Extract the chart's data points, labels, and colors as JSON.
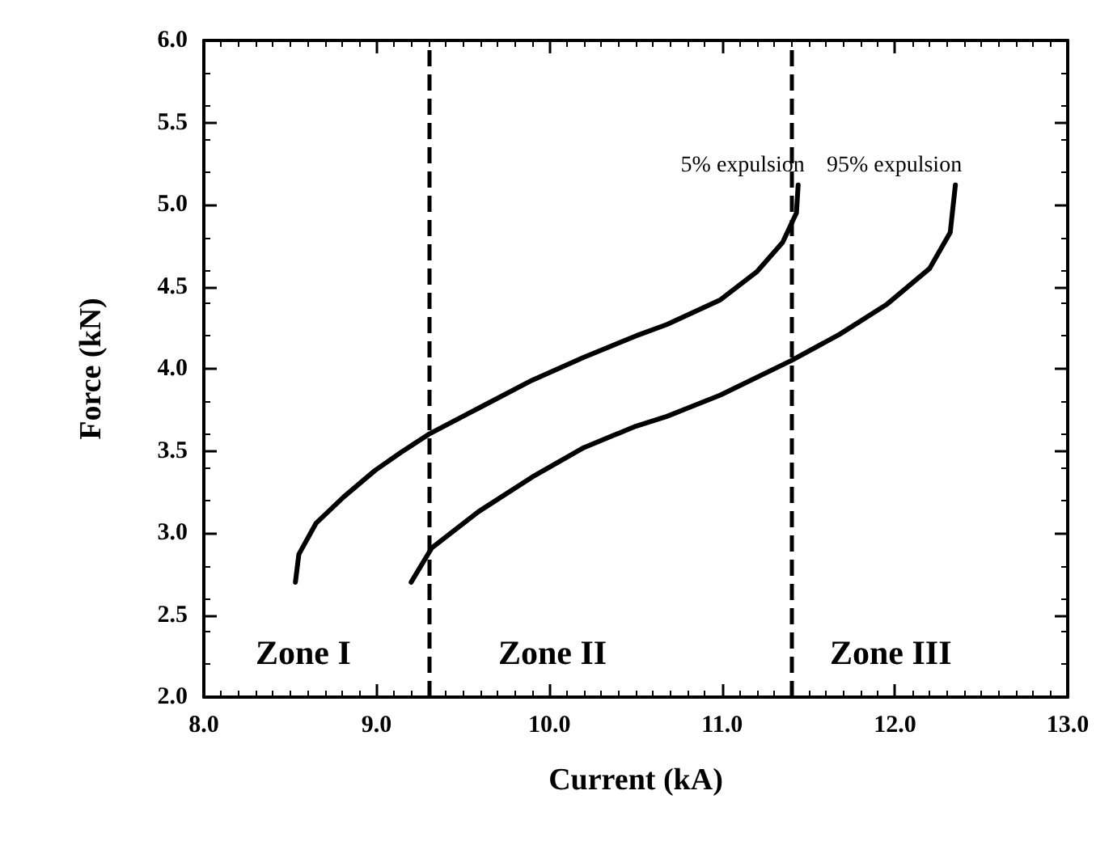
{
  "chart_data": {
    "type": "line",
    "xlabel": "Current (kA)",
    "ylabel": "Force (kN)",
    "series": [
      {
        "name": "5% expulsion",
        "color": "#000000",
        "x": [
          8.53,
          8.55,
          8.65,
          8.81,
          8.99,
          9.14,
          9.3,
          9.59,
          9.9,
          10.2,
          10.5,
          10.68,
          10.99,
          11.2,
          11.35,
          11.43,
          11.44
        ],
        "values": [
          2.7,
          2.87,
          3.06,
          3.22,
          3.38,
          3.49,
          3.6,
          3.76,
          3.93,
          4.07,
          4.2,
          4.27,
          4.42,
          4.59,
          4.77,
          4.95,
          5.12
        ]
      },
      {
        "name": "95% expulsion",
        "color": "#000000",
        "x": [
          9.2,
          9.32,
          9.59,
          9.9,
          10.2,
          10.5,
          10.68,
          10.99,
          11.4,
          11.68,
          11.95,
          12.2,
          12.32,
          12.35
        ],
        "values": [
          2.7,
          2.91,
          3.13,
          3.34,
          3.52,
          3.65,
          3.71,
          3.84,
          4.05,
          4.21,
          4.39,
          4.61,
          4.83,
          5.12
        ]
      }
    ],
    "xlim": [
      8,
      13
    ],
    "xticks": [
      {
        "value": 8,
        "label": "8.0"
      },
      {
        "value": 9,
        "label": "9.0"
      },
      {
        "value": 10,
        "label": "10.0"
      },
      {
        "value": 11,
        "label": "11.0"
      },
      {
        "value": 12,
        "label": "12.0"
      },
      {
        "value": 13,
        "label": "13.0"
      }
    ],
    "ylim": [
      2,
      6
    ],
    "yticks": [
      {
        "value": 2,
        "label": "2.0"
      },
      2.5,
      {
        "value": 3,
        "label": "3.0"
      },
      3.5,
      {
        "value": 4,
        "label": "4.0"
      },
      4.5,
      {
        "value": 5,
        "label": "5.0"
      },
      5.5,
      {
        "value": 6,
        "label": "6.0"
      }
    ],
    "ref_lines": [
      {
        "axis": "x",
        "value": 9.3,
        "line_style": "dashed",
        "color": "#000000"
      },
      {
        "axis": "x",
        "value": 11.4,
        "line_style": "dashed",
        "color": "#000000"
      }
    ],
    "annotations": [
      "Zone I",
      "Zone II",
      "Zone III"
    ],
    "grid": false,
    "marker": "none",
    "line_style": "solid"
  }
}
